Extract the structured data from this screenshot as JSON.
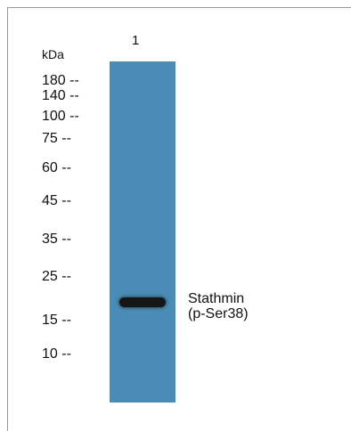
{
  "blot": {
    "lane_label": "1",
    "unit_label": "kDa",
    "markers": [
      {
        "label": "180 --",
        "kda": 180
      },
      {
        "label": "140 --",
        "kda": 140
      },
      {
        "label": "100 --",
        "kda": 100
      },
      {
        "label": "75 --",
        "kda": 75
      },
      {
        "label": "60 --",
        "kda": 60
      },
      {
        "label": "45 --",
        "kda": 45
      },
      {
        "label": "35 --",
        "kda": 35
      },
      {
        "label": "25 --",
        "kda": 25
      },
      {
        "label": "15 --",
        "kda": 15
      },
      {
        "label": "10 --",
        "kda": 10
      }
    ],
    "band": {
      "name_line1": "Stathmin",
      "name_line2": "(p-Ser38)"
    },
    "colors": {
      "lane": "#4a8cb5",
      "band": "#151515",
      "frame": "#9a9a9a"
    }
  }
}
